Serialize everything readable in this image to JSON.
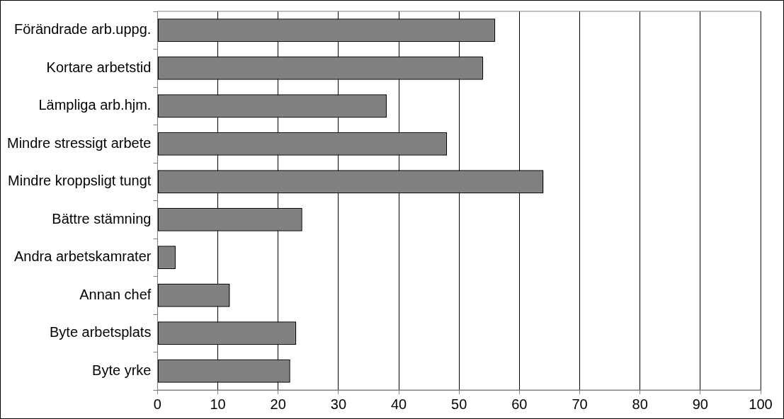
{
  "chart_data": {
    "type": "bar",
    "orientation": "horizontal",
    "categories": [
      "Förändrade arb.uppg.",
      "Kortare arbetstid",
      "Lämpliga arb.hjm.",
      "Mindre stressigt arbete",
      "Mindre kroppsligt tungt",
      "Bättre stämning",
      "Andra arbetskamrater",
      "Annan chef",
      "Byte arbetsplats",
      "Byte yrke"
    ],
    "values": [
      56,
      54,
      38,
      48,
      64,
      24,
      3,
      12,
      23,
      22
    ],
    "color": "#808080",
    "xlim": [
      0,
      100
    ],
    "xticks": [
      0,
      10,
      20,
      30,
      40,
      50,
      60,
      70,
      80,
      90,
      100
    ],
    "grid": "x",
    "legend": false
  }
}
